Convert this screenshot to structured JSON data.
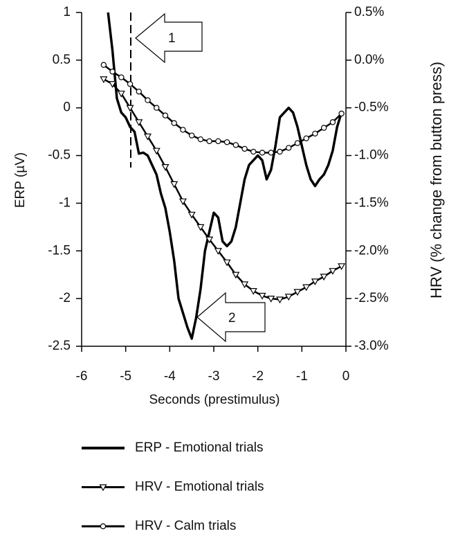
{
  "chart_data": {
    "type": "line",
    "xlabel": "Seconds (prestimulus)",
    "ylabel": "ERP (µV)",
    "y2label": "HRV (% change from button press)",
    "annotations": [
      "1",
      "2"
    ],
    "xlim": [
      -6,
      0
    ],
    "xticks": [
      -6,
      -5,
      -4,
      -3,
      -2,
      -1,
      0
    ],
    "ylim": [
      -2.5,
      1
    ],
    "yticks": [
      1,
      0.5,
      0,
      -0.5,
      -1,
      -1.5,
      -2,
      -2.5
    ],
    "y2lim": [
      -3.0,
      0.5
    ],
    "y2ticks": [
      {
        "value": 0.5,
        "label": "0.5%"
      },
      {
        "value": 0.0,
        "label": "0.0%"
      },
      {
        "value": -0.5,
        "label": "-0.5%"
      },
      {
        "value": -1.0,
        "label": "-1.0%"
      },
      {
        "value": -1.5,
        "label": "-1.5%"
      },
      {
        "value": -2.0,
        "label": "-2.0%"
      },
      {
        "value": -2.5,
        "label": "-2.5%"
      },
      {
        "value": -3.0,
        "label": "-3.0%"
      }
    ],
    "series": [
      {
        "name": "ERP - Emotional trials",
        "color": "#000000",
        "marker": "none",
        "axis": "y",
        "x": [
          -5.4,
          -5.3,
          -5.2,
          -5.1,
          -5.0,
          -4.9,
          -4.8,
          -4.7,
          -4.6,
          -4.5,
          -4.4,
          -4.3,
          -4.2,
          -4.1,
          -4.0,
          -3.9,
          -3.8,
          -3.7,
          -3.6,
          -3.5,
          -3.4,
          -3.3,
          -3.2,
          -3.0,
          -2.9,
          -2.8,
          -2.7,
          -2.6,
          -2.5,
          -2.4,
          -2.3,
          -2.2,
          -2.1,
          -2.0,
          -1.9,
          -1.8,
          -1.7,
          -1.6,
          -1.5,
          -1.4,
          -1.3,
          -1.2,
          -1.1,
          -1.0,
          -0.9,
          -0.8,
          -0.7,
          -0.6,
          -0.5,
          -0.4,
          -0.3,
          -0.2,
          -0.1
        ],
        "values": [
          1.0,
          0.6,
          0.1,
          -0.05,
          -0.1,
          -0.2,
          -0.25,
          -0.48,
          -0.47,
          -0.5,
          -0.6,
          -0.7,
          -0.9,
          -1.05,
          -1.3,
          -1.6,
          -2.0,
          -2.15,
          -2.3,
          -2.42,
          -2.2,
          -1.9,
          -1.5,
          -1.1,
          -1.15,
          -1.4,
          -1.45,
          -1.4,
          -1.25,
          -1.0,
          -0.75,
          -0.6,
          -0.55,
          -0.5,
          -0.55,
          -0.75,
          -0.65,
          -0.4,
          -0.1,
          -0.05,
          0.0,
          -0.05,
          -0.2,
          -0.4,
          -0.6,
          -0.75,
          -0.82,
          -0.75,
          -0.7,
          -0.6,
          -0.45,
          -0.2,
          -0.05
        ]
      },
      {
        "name": "HRV - Emotional trials",
        "color": "#000000",
        "marker": "triangle",
        "axis": "y2",
        "x": [
          -5.5,
          -5.3,
          -5.1,
          -4.9,
          -4.7,
          -4.5,
          -4.3,
          -4.1,
          -3.9,
          -3.7,
          -3.5,
          -3.3,
          -3.1,
          -2.9,
          -2.7,
          -2.5,
          -2.3,
          -2.1,
          -1.9,
          -1.7,
          -1.5,
          -1.3,
          -1.1,
          -0.9,
          -0.7,
          -0.5,
          -0.3,
          -0.1
        ],
        "values": [
          -0.2,
          -0.25,
          -0.35,
          -0.5,
          -0.65,
          -0.8,
          -0.95,
          -1.12,
          -1.3,
          -1.48,
          -1.62,
          -1.75,
          -1.88,
          -2.0,
          -2.12,
          -2.25,
          -2.35,
          -2.42,
          -2.47,
          -2.5,
          -2.51,
          -2.48,
          -2.43,
          -2.38,
          -2.32,
          -2.27,
          -2.21,
          -2.16
        ]
      },
      {
        "name": "HRV - Calm trials",
        "color": "#000000",
        "marker": "circle",
        "axis": "y2",
        "x": [
          -5.5,
          -5.3,
          -5.1,
          -4.9,
          -4.7,
          -4.5,
          -4.3,
          -4.1,
          -3.9,
          -3.7,
          -3.5,
          -3.3,
          -3.1,
          -2.9,
          -2.7,
          -2.5,
          -2.3,
          -2.1,
          -1.9,
          -1.7,
          -1.5,
          -1.3,
          -1.1,
          -0.9,
          -0.7,
          -0.5,
          -0.3,
          -0.1
        ],
        "values": [
          -0.05,
          -0.12,
          -0.18,
          -0.25,
          -0.33,
          -0.42,
          -0.5,
          -0.58,
          -0.66,
          -0.73,
          -0.79,
          -0.83,
          -0.85,
          -0.85,
          -0.86,
          -0.89,
          -0.93,
          -0.96,
          -0.97,
          -0.97,
          -0.96,
          -0.92,
          -0.87,
          -0.82,
          -0.77,
          -0.71,
          -0.65,
          -0.56
        ]
      }
    ]
  }
}
